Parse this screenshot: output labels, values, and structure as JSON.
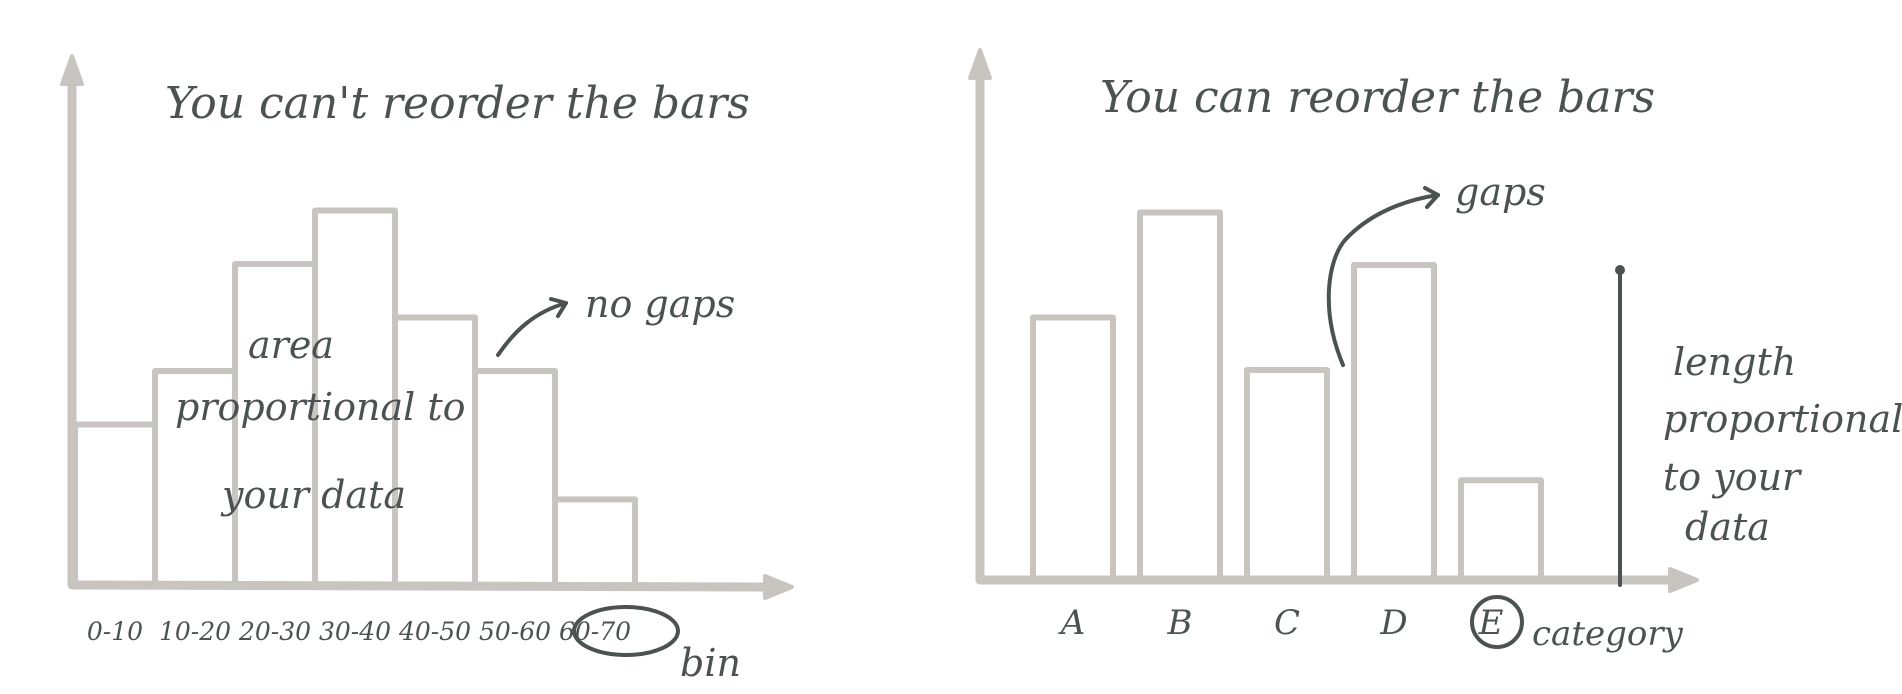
{
  "colors": {
    "axis": "#c8c5c1",
    "ink": "#4b5251",
    "background": "#ffffff"
  },
  "left": {
    "title": "You can't reorder the bars",
    "note_gaps": "no gaps",
    "note_area": [
      "area",
      "proportional to",
      "your data"
    ],
    "xlabel": "bin",
    "highlighted_bin": "60-70"
  },
  "right": {
    "title": "You can reorder the bars",
    "note_gaps": "gaps",
    "note_length": [
      "length",
      "proportional",
      "to your",
      "data"
    ],
    "xlabel": "category",
    "highlighted_category": "E"
  },
  "chart_data": [
    {
      "type": "bar",
      "title": "You can't reorder the bars",
      "xlabel": "bin",
      "categories": [
        "0-10",
        "10-20",
        "20-30",
        "30-40",
        "40-50",
        "50-60",
        "60-70"
      ],
      "values": [
        3,
        4,
        6,
        7,
        5,
        4,
        1.6
      ],
      "grid": false
    },
    {
      "type": "bar",
      "title": "You can reorder the bars",
      "xlabel": "category",
      "categories": [
        "A",
        "B",
        "C",
        "D",
        "E"
      ],
      "values": [
        5,
        7,
        4,
        6,
        1.9
      ],
      "grid": false
    }
  ]
}
